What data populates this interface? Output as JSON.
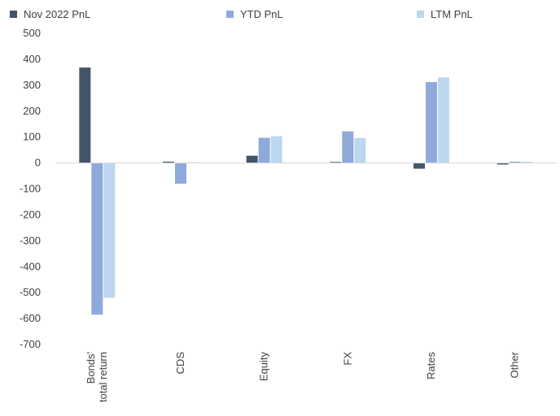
{
  "chart_data": {
    "type": "bar",
    "title": "",
    "xlabel": "",
    "ylabel": "",
    "categories": [
      "Bonds' total return",
      "CDS",
      "Equity",
      "FX",
      "Rates",
      "Other"
    ],
    "category_label_lines": [
      [
        "Bonds'",
        "total return"
      ],
      [
        "CDS"
      ],
      [
        "Equity"
      ],
      [
        "FX"
      ],
      [
        "Rates"
      ],
      [
        "Other"
      ]
    ],
    "series": [
      {
        "name": "Nov 2022 PnL",
        "color": "#44546a",
        "values": [
          368,
          5,
          28,
          4,
          -22,
          -6
        ]
      },
      {
        "name": "YTD PnL",
        "color": "#8eaadb",
        "values": [
          -585,
          -80,
          97,
          122,
          312,
          5
        ]
      },
      {
        "name": "LTM PnL",
        "color": "#bdd7ee",
        "values": [
          -520,
          3,
          103,
          96,
          330,
          5
        ]
      }
    ],
    "ylim": [
      -700,
      500
    ],
    "yticks": [
      500,
      400,
      300,
      200,
      100,
      0,
      -100,
      -200,
      -300,
      -400,
      -500,
      -600,
      -700
    ],
    "grid": false,
    "legend_position": "top"
  }
}
